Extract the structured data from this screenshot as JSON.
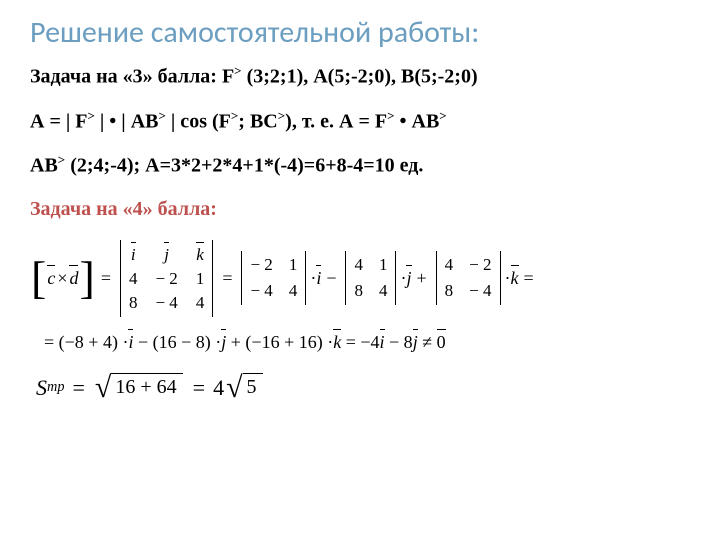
{
  "title": "Решение самостоятельной работы:",
  "p1": "Задача на «3» балла: F",
  "p1b": " (3;2;1), А(5;-2;0), В(5;-2;0)",
  "p2a": "А = | F",
  "p2b": " | • | АВ",
  "p2c": " | cos (F",
  "p2d": "; ВС",
  "p2e": "), т. е. А = F",
  "p2f": " • АВ",
  "p3a": "АВ",
  "p3b": " (2;4;-4); А=3*2+2*4+1*(-4)=6+8-4=10 ед.",
  "p4": "Задача на «4» балла:",
  "det3": {
    "h": [
      "i",
      "j",
      "k"
    ],
    "r1": [
      "4",
      "− 2",
      "1"
    ],
    "r2": [
      "8",
      "− 4",
      "4"
    ]
  },
  "d2a": {
    "r": [
      "− 2",
      "1",
      "− 4",
      "4"
    ]
  },
  "d2b": {
    "r": [
      "4",
      "1",
      "8",
      "4"
    ]
  },
  "d2c": {
    "r": [
      "4",
      "− 2",
      "8",
      "− 4"
    ]
  },
  "line2": {
    "a": "= (−8 + 4) ·",
    "b": " − (16 − 8) ·",
    "c": " + (−16 + 16) ·",
    "d": " = −4",
    "e": " − 8",
    "f": " ≠ "
  },
  "formula3": {
    "lhs_s": "S",
    "lhs_sub": "тр",
    "rad1": "16 + 64",
    "coef": "4",
    "rad2": "5"
  },
  "sym": {
    "i": "i",
    "j": "j",
    "k": "k",
    "zero": "0",
    "sup": ">",
    "times": "×",
    "eqend": "="
  }
}
